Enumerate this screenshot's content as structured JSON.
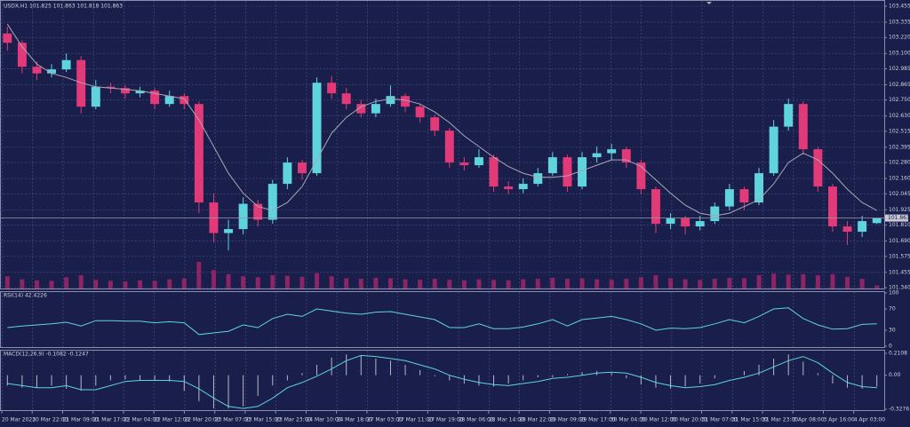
{
  "chart_data": {
    "type": "candlestick",
    "title": "USDX.H1 101.825 101.863 101.818 101.863",
    "current_price": 101.863,
    "bull_color": "#5fd4dc",
    "bear_color": "#e23a78",
    "ma_color": "#a8a8b8",
    "volume_color": "#8c2466",
    "ylim": [
      101.34,
      103.455
    ],
    "yticks": [
      103.455,
      103.335,
      {
        "value": 103.22,
        "label": "103.220"
      },
      {
        "value": 103.1,
        "label": "103.100"
      },
      102.985,
      102.865,
      {
        "value": 102.75,
        "label": "102.750"
      },
      {
        "value": 102.63,
        "label": "102.630"
      },
      102.515,
      102.395,
      {
        "value": 102.28,
        "label": "102.280"
      },
      {
        "value": 102.16,
        "label": "102.160"
      },
      102.045,
      101.925,
      {
        "value": 101.81,
        "label": "101.810"
      },
      {
        "value": 101.69,
        "label": "101.690"
      },
      101.575,
      101.455,
      {
        "value": 101.34,
        "label": "101.340"
      }
    ],
    "grid": true,
    "x_labels": [
      "20 Mar 2023",
      "20 Mar 22:00",
      "21 Mar 09:00",
      "21 Mar 17:00",
      "22 Mar 04:00",
      "22 Mar 12:00",
      "22 Mar 20:00",
      "23 Mar 07:00",
      "23 Mar 15:00",
      "23 Mar 23:00",
      "24 Mar 10:00",
      "24 Mar 18:00",
      "27 Mar 03:00",
      "27 Mar 11:00",
      "27 Mar 19:00",
      "28 Mar 06:00",
      "28 Mar 14:00",
      "28 Mar 22:00",
      "29 Mar 09:00",
      "29 Mar 17:00",
      "30 Mar 04:00",
      "30 Mar 12:00",
      "30 Mar 20:00",
      "31 Mar 07:00",
      "31 Mar 15:00",
      "31 Mar 23:00",
      "3 Apr 08:00",
      "3 Apr 16:00",
      "4 Apr 03:00"
    ],
    "candles": [
      [
        103.25,
        103.3,
        103.12,
        103.18
      ],
      [
        103.18,
        103.2,
        102.95,
        103.0
      ],
      [
        103.0,
        103.04,
        102.9,
        102.95
      ],
      [
        102.95,
        103.02,
        102.92,
        102.98
      ],
      [
        102.98,
        103.1,
        102.96,
        103.05
      ],
      [
        103.05,
        103.08,
        102.65,
        102.7
      ],
      [
        102.7,
        102.9,
        102.68,
        102.85
      ],
      [
        102.85,
        102.88,
        102.8,
        102.84
      ],
      [
        102.84,
        102.86,
        102.76,
        102.8
      ],
      [
        102.8,
        102.85,
        102.77,
        102.82
      ],
      [
        102.82,
        102.84,
        102.68,
        102.72
      ],
      [
        102.72,
        102.82,
        102.7,
        102.78
      ],
      [
        102.78,
        102.8,
        102.68,
        102.72
      ],
      [
        102.72,
        102.74,
        101.9,
        101.98
      ],
      [
        101.98,
        102.05,
        101.68,
        101.75
      ],
      [
        101.75,
        101.85,
        101.62,
        101.78
      ],
      [
        101.78,
        102.02,
        101.74,
        101.97
      ],
      [
        101.97,
        102.0,
        101.8,
        101.85
      ],
      [
        101.85,
        102.15,
        101.82,
        102.12
      ],
      [
        102.12,
        102.32,
        102.08,
        102.28
      ],
      [
        102.28,
        102.3,
        102.15,
        102.2
      ],
      [
        102.2,
        102.92,
        102.18,
        102.88
      ],
      [
        102.88,
        102.93,
        102.76,
        102.8
      ],
      [
        102.8,
        102.84,
        102.68,
        102.72
      ],
      [
        102.72,
        102.75,
        102.62,
        102.65
      ],
      [
        102.65,
        102.76,
        102.62,
        102.72
      ],
      [
        102.72,
        102.86,
        102.7,
        102.78
      ],
      [
        102.78,
        102.8,
        102.66,
        102.7
      ],
      [
        102.7,
        102.72,
        102.58,
        102.62
      ],
      [
        102.62,
        102.64,
        102.48,
        102.52
      ],
      [
        102.52,
        102.54,
        102.24,
        102.28
      ],
      [
        102.28,
        102.32,
        102.22,
        102.26
      ],
      [
        102.26,
        102.38,
        102.24,
        102.32
      ],
      [
        102.32,
        102.34,
        102.06,
        102.1
      ],
      [
        102.1,
        102.14,
        102.04,
        102.08
      ],
      [
        102.08,
        102.16,
        102.05,
        102.12
      ],
      [
        102.12,
        102.24,
        102.1,
        102.2
      ],
      [
        102.2,
        102.36,
        102.18,
        102.32
      ],
      [
        102.32,
        102.34,
        102.06,
        102.1
      ],
      [
        102.1,
        102.36,
        102.08,
        102.32
      ],
      [
        102.32,
        102.4,
        102.28,
        102.35
      ],
      [
        102.35,
        102.42,
        102.3,
        102.38
      ],
      [
        102.38,
        102.4,
        102.24,
        102.28
      ],
      [
        102.28,
        102.3,
        102.04,
        102.08
      ],
      [
        102.08,
        102.1,
        101.75,
        101.82
      ],
      [
        101.82,
        101.9,
        101.78,
        101.86
      ],
      [
        101.86,
        101.88,
        101.74,
        101.8
      ],
      [
        101.8,
        101.88,
        101.77,
        101.84
      ],
      [
        101.84,
        101.98,
        101.82,
        101.95
      ],
      [
        101.95,
        102.12,
        101.92,
        102.08
      ],
      [
        102.08,
        102.1,
        101.92,
        101.98
      ],
      [
        101.98,
        102.24,
        101.96,
        102.2
      ],
      [
        102.2,
        102.6,
        102.18,
        102.55
      ],
      [
        102.55,
        102.76,
        102.52,
        102.72
      ],
      [
        102.72,
        102.74,
        102.34,
        102.38
      ],
      [
        102.38,
        102.4,
        102.06,
        102.1
      ],
      [
        102.1,
        102.12,
        101.76,
        101.8
      ],
      [
        101.8,
        101.84,
        101.66,
        101.76
      ],
      [
        101.76,
        101.88,
        101.72,
        101.84
      ],
      [
        101.825,
        101.863,
        101.818,
        101.863
      ]
    ],
    "ma": [
      103.32,
      103.15,
      103.02,
      102.95,
      102.92,
      102.88,
      102.85,
      102.84,
      102.83,
      102.82,
      102.8,
      102.78,
      102.76,
      102.6,
      102.4,
      102.2,
      102.05,
      101.95,
      101.92,
      101.98,
      102.1,
      102.3,
      102.5,
      102.62,
      102.7,
      102.74,
      102.76,
      102.75,
      102.72,
      102.66,
      102.58,
      102.48,
      102.4,
      102.32,
      102.25,
      102.2,
      102.17,
      102.17,
      102.18,
      102.22,
      102.26,
      102.3,
      102.3,
      102.25,
      102.15,
      102.05,
      101.96,
      101.9,
      101.88,
      101.9,
      101.95,
      102.0,
      102.12,
      102.28,
      102.35,
      102.3,
      102.2,
      102.08,
      101.98,
      101.92
    ],
    "volume": [
      2400,
      1800,
      1600,
      1500,
      2200,
      2600,
      1700,
      1500,
      1400,
      1600,
      1500,
      1800,
      2000,
      5200,
      3600,
      2800,
      2400,
      2200,
      2600,
      2500,
      2300,
      3000,
      2400,
      2000,
      1900,
      2100,
      2000,
      1800,
      1700,
      1900,
      1700,
      1600,
      1800,
      1700,
      1600,
      1800,
      1900,
      2100,
      1900,
      2000,
      1800,
      1700,
      1900,
      2200,
      2600,
      2000,
      1800,
      1700,
      1900,
      2100,
      2000,
      2600,
      2900,
      2700,
      2800,
      2600,
      2800,
      2300,
      1900,
      600
    ],
    "rsi": {
      "label": "RSI(14) 42.4226",
      "color": "#5fd4dc",
      "ylim": [
        0,
        100
      ],
      "yticks": [
        100,
        70,
        30,
        0
      ],
      "values": [
        35,
        38,
        40,
        42,
        45,
        38,
        48,
        48,
        47,
        47,
        44,
        46,
        44,
        22,
        25,
        28,
        40,
        35,
        52,
        60,
        56,
        70,
        66,
        62,
        60,
        64,
        65,
        60,
        55,
        50,
        35,
        35,
        42,
        33,
        33,
        36,
        42,
        50,
        38,
        50,
        53,
        56,
        50,
        42,
        30,
        34,
        33,
        35,
        42,
        50,
        44,
        56,
        70,
        72,
        52,
        40,
        32,
        33,
        41,
        42
      ]
    },
    "macd": {
      "label": "MACD(12,26,9) -0.1082 -0.1247",
      "color": "#5fd4dc",
      "hist_color": "#b8b8c8",
      "ylim": [
        -0.3276,
        0.2108
      ],
      "yticks": [
        0.2108,
        {
          "value": 0,
          "label": "0.00"
        },
        -0.3276
      ],
      "histogram": [
        -0.1,
        -0.12,
        -0.12,
        -0.1,
        -0.13,
        -0.15,
        -0.1,
        -0.05,
        -0.04,
        -0.05,
        -0.05,
        -0.06,
        -0.15,
        -0.25,
        -0.32,
        -0.32,
        -0.3,
        -0.2,
        -0.1,
        -0.05,
        0.02,
        0.1,
        0.17,
        0.2,
        0.19,
        0.16,
        0.14,
        0.1,
        0.05,
        -0.01,
        -0.05,
        -0.08,
        -0.1,
        -0.11,
        -0.08,
        -0.05,
        -0.02,
        -0.02,
        0.01,
        0.03,
        0.04,
        0.02,
        -0.03,
        -0.09,
        -0.12,
        -0.13,
        -0.11,
        -0.08,
        -0.03,
        0.0,
        0.04,
        0.1,
        0.16,
        0.2,
        0.13,
        0.02,
        -0.08,
        -0.12,
        -0.13,
        -0.11
      ],
      "signal": [
        -0.08,
        -0.1,
        -0.12,
        -0.12,
        -0.1,
        -0.14,
        -0.14,
        -0.1,
        -0.06,
        -0.05,
        -0.05,
        -0.05,
        -0.06,
        -0.13,
        -0.22,
        -0.3,
        -0.32,
        -0.3,
        -0.22,
        -0.12,
        -0.07,
        -0.01,
        0.06,
        0.14,
        0.19,
        0.18,
        0.16,
        0.14,
        0.1,
        0.06,
        0.0,
        -0.04,
        -0.07,
        -0.09,
        -0.1,
        -0.08,
        -0.06,
        -0.03,
        -0.02,
        0.0,
        0.02,
        0.03,
        0.02,
        -0.02,
        -0.07,
        -0.1,
        -0.12,
        -0.11,
        -0.09,
        -0.05,
        -0.02,
        0.02,
        0.08,
        0.14,
        0.18,
        0.12,
        0.02,
        -0.07,
        -0.11,
        -0.12
      ]
    }
  }
}
